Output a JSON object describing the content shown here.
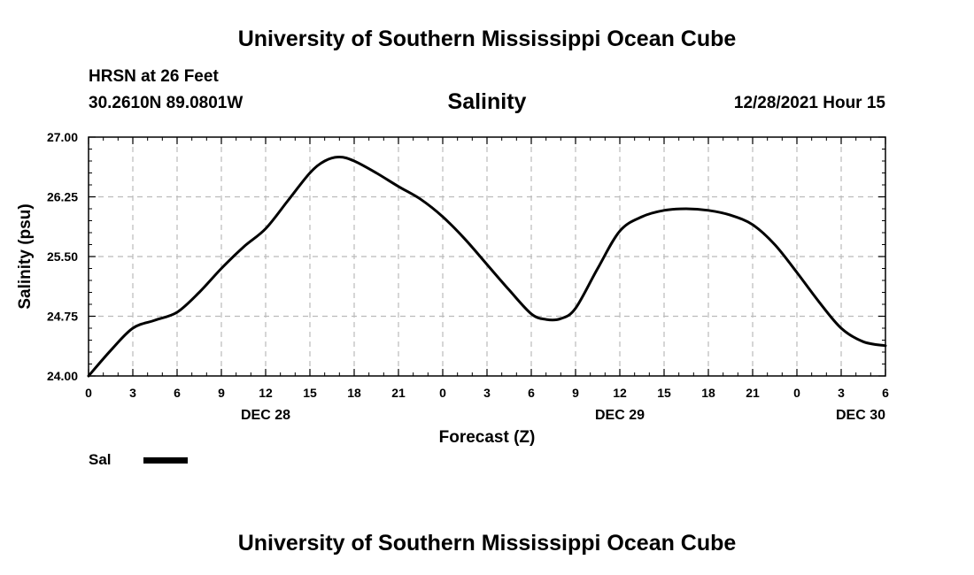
{
  "header": {
    "title": "University of Southern Mississippi Ocean Cube",
    "station": "HRSN at 26 Feet",
    "coordinates": "30.2610N  89.0801W",
    "chart_title": "Salinity",
    "timestamp": "12/28/2021 Hour 15"
  },
  "footer": {
    "title": "University of Southern Mississippi Ocean Cube"
  },
  "legend": {
    "label": "Sal"
  },
  "chart_data": {
    "type": "line",
    "title": "Salinity",
    "xlabel": "Forecast (Z)",
    "ylabel": "Salinity (psu)",
    "xlim": [
      0,
      54
    ],
    "ylim": [
      24.0,
      27.0
    ],
    "yticks": [
      24.0,
      24.75,
      25.5,
      26.25,
      27.0
    ],
    "ytick_labels": [
      "24.00",
      "24.75",
      "25.50",
      "26.25",
      "27.00"
    ],
    "xticks": [
      0,
      3,
      6,
      9,
      12,
      15,
      18,
      21,
      24,
      27,
      30,
      33,
      36,
      39,
      42,
      45,
      48,
      51,
      54
    ],
    "xtick_labels": [
      "0",
      "3",
      "6",
      "9",
      "12",
      "15",
      "18",
      "21",
      "0",
      "3",
      "6",
      "9",
      "12",
      "15",
      "18",
      "21",
      "0",
      "3",
      "6"
    ],
    "date_labels": [
      {
        "x": 12,
        "label": "DEC 28"
      },
      {
        "x": 36,
        "label": "DEC 29"
      },
      {
        "x": 54,
        "label": "DEC 30"
      }
    ],
    "grid": true,
    "legend_position": "bottom-left",
    "series": [
      {
        "name": "Sal",
        "color": "#000000",
        "x": [
          0,
          1.5,
          3,
          4.5,
          6,
          7.5,
          9,
          10.5,
          12,
          13.5,
          15,
          16,
          17,
          18,
          19.5,
          21,
          22.5,
          24,
          25.5,
          27,
          28.5,
          30,
          31,
          32,
          33,
          34.5,
          36,
          37.5,
          39,
          40.5,
          42,
          43.5,
          45,
          46.5,
          48,
          49.5,
          51,
          52.5,
          54
        ],
        "values": [
          24.0,
          24.32,
          24.6,
          24.7,
          24.8,
          25.05,
          25.35,
          25.62,
          25.85,
          26.2,
          26.55,
          26.7,
          26.75,
          26.7,
          26.55,
          26.38,
          26.22,
          26.0,
          25.72,
          25.4,
          25.08,
          24.78,
          24.71,
          24.72,
          24.85,
          25.35,
          25.82,
          26.0,
          26.08,
          26.1,
          26.08,
          26.02,
          25.9,
          25.65,
          25.3,
          24.93,
          24.6,
          24.43,
          24.38
        ]
      }
    ]
  }
}
